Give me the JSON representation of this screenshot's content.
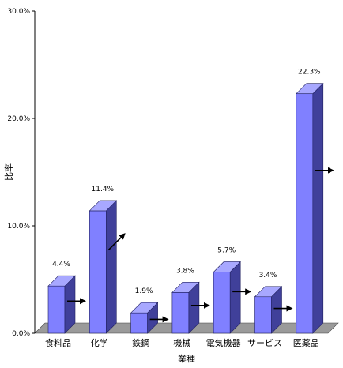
{
  "chart_data": {
    "type": "bar",
    "title": "",
    "xlabel": "業種",
    "ylabel": "比率",
    "ylim": [
      0,
      30
    ],
    "y_ticks": [
      "0.0%",
      "10.0%",
      "20.0%",
      "30.0%"
    ],
    "categories": [
      "食料品",
      "化学",
      "鉄鋼",
      "機械",
      "電気機器",
      "サービス",
      "医薬品"
    ],
    "values": [
      4.4,
      11.4,
      1.9,
      3.8,
      5.7,
      3.4,
      22.3
    ],
    "value_labels": [
      "4.4%",
      "11.4%",
      "1.9%",
      "3.8%",
      "5.7%",
      "3.4%",
      "22.3%"
    ],
    "trend_arrows": [
      "right",
      "up-right",
      "right",
      "right",
      "right",
      "right",
      "right"
    ],
    "style": "3d-column",
    "grid": false,
    "legend": "none",
    "colors": {
      "bar_front": "#8080ff",
      "bar_side": "#40409a",
      "bar_top": "#a8a8ff",
      "floor": "#9a9a9a",
      "arrow": "#000000"
    }
  }
}
